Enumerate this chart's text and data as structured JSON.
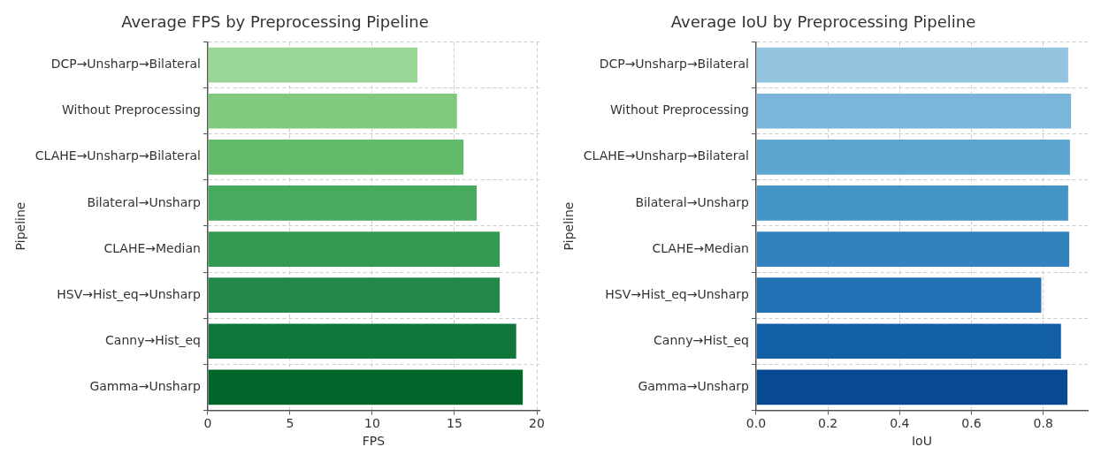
{
  "chart_data": [
    {
      "type": "bar",
      "orientation": "horizontal",
      "title": "Average FPS by Preprocessing Pipeline",
      "xlabel": "FPS",
      "ylabel": "Pipeline",
      "categories": [
        "DCP→Unsharp→Bilateral",
        "Without Preprocessing",
        "CLAHE→Unsharp→Bilateral",
        "Bilateral→Unsharp",
        "CLAHE→Median",
        "HSV→Hist_eq→Unsharp",
        "Canny→Hist_eq",
        "Gamma→Unsharp"
      ],
      "values": [
        12.8,
        15.2,
        15.6,
        16.4,
        17.8,
        17.8,
        18.8,
        19.2
      ],
      "colors": [
        "#99d595",
        "#80c97e",
        "#63ba6b",
        "#48aa5e",
        "#349a53",
        "#22894a",
        "#10773a",
        "#00662a"
      ],
      "xlim": [
        0,
        20.16
      ],
      "xticks": [
        0,
        5,
        10,
        15,
        20
      ],
      "grid": true,
      "legend": false
    },
    {
      "type": "bar",
      "orientation": "horizontal",
      "title": "Average IoU by Preprocessing Pipeline",
      "xlabel": "IoU",
      "ylabel": "Pipeline",
      "categories": [
        "DCP→Unsharp→Bilateral",
        "Without Preprocessing",
        "CLAHE→Unsharp→Bilateral",
        "Bilateral→Unsharp",
        "CLAHE→Median",
        "HSV→Hist_eq→Unsharp",
        "Canny→Hist_eq",
        "Gamma→Unsharp"
      ],
      "values": [
        0.872,
        0.88,
        0.877,
        0.872,
        0.875,
        0.797,
        0.852,
        0.87
      ],
      "colors": [
        "#94c4df",
        "#7ab5da",
        "#5ea6d2",
        "#4594c7",
        "#3182bd",
        "#2171b5",
        "#135fa6",
        "#084a91"
      ],
      "xlim": [
        0,
        0.924
      ],
      "xticks": [
        {
          "value": 0,
          "label": "0.0"
        },
        0.2,
        0.4,
        0.6,
        0.8
      ],
      "grid": true,
      "legend": false
    }
  ]
}
